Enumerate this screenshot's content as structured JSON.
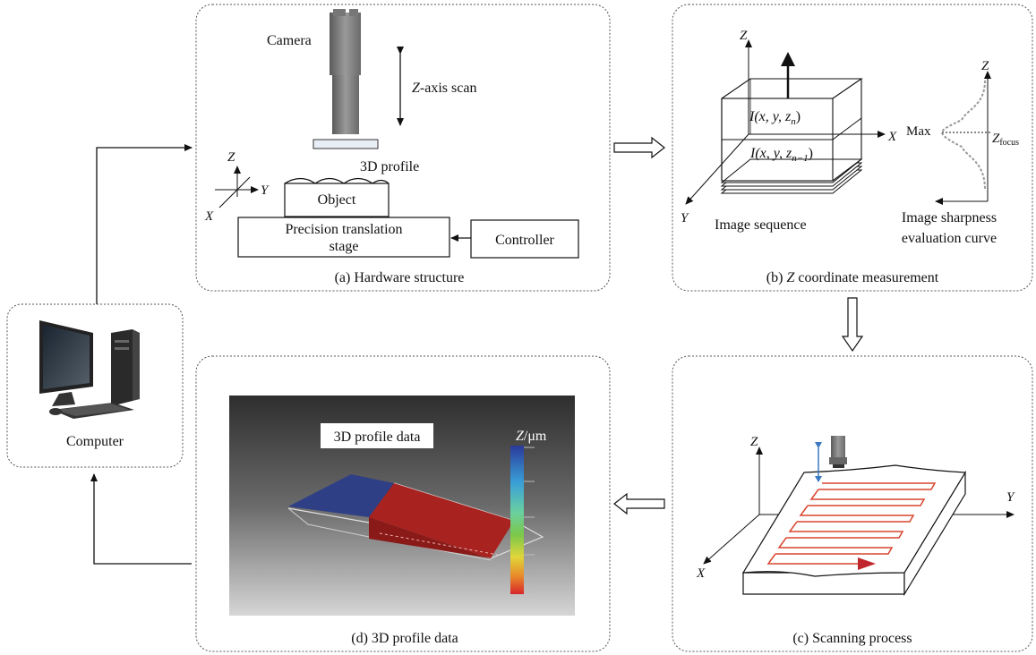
{
  "panels": {
    "hardware": {
      "caption": "(a) Hardware structure",
      "camera": "Camera",
      "zscan_italic": "Z",
      "zscan_rest": "-axis scan",
      "profile": "3D profile",
      "object": "Object",
      "stage_line1": "Precision translation",
      "stage_line2": "stage",
      "controller": "Controller",
      "axis_z": "Z",
      "axis_y": "Y",
      "axis_x": "X"
    },
    "zmeasure": {
      "caption_prefix": "(b) ",
      "caption_italic": "Z",
      "caption_suffix": " coordinate measurement",
      "axis_z": "Z",
      "axis_x": "X",
      "axis_y": "Y",
      "iz_n": "I(x, y, z",
      "iz_n_sub": "n",
      "iz_n_close": ")",
      "iz_n1": "I(x, y, z",
      "iz_n1_sub": "n−1",
      "iz_n1_close": ")",
      "image_sequence": "Image sequence",
      "max": "Max",
      "z_focus": "Z",
      "z_focus_sub": "focus",
      "curve_z": "Z",
      "curve_label_line1": "Image sharpness",
      "curve_label_line2": "evaluation curve"
    },
    "scanning": {
      "caption": "(c) Scanning process",
      "axis_z": "Z",
      "axis_y": "Y",
      "axis_x": "X"
    },
    "profile": {
      "caption": "(d) 3D profile data",
      "title": "3D profile data",
      "scale_label_italic": "Z",
      "scale_label_rest": "/μm"
    },
    "computer": {
      "label": "Computer"
    }
  },
  "colors": {
    "scan_path": "#d9452f",
    "z_arrow_blue": "#3a78c2",
    "block_blue": "#2f3f86",
    "block_red": "#a8231f"
  }
}
